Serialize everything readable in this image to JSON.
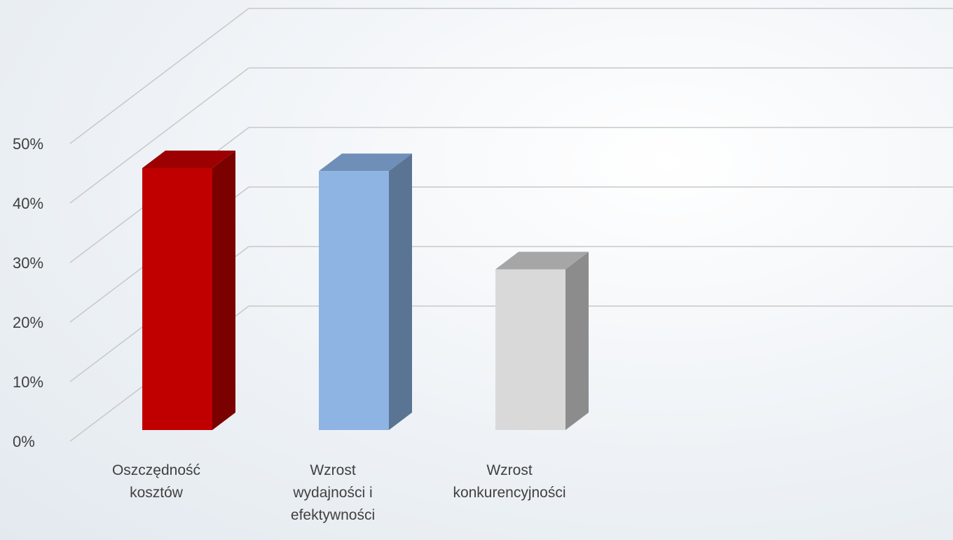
{
  "chart_data": {
    "type": "bar3d",
    "categories": [
      "Oszczędność kosztów",
      "Wzrost wydajności i efektywności",
      "Wzrost konkurencyjności"
    ],
    "values": [
      44,
      43.5,
      27
    ],
    "colors": [
      "#c00000",
      "#8db4e2",
      "#d9d9d9"
    ],
    "side_colors": [
      "#7b0000",
      "#5a7494",
      "#8c8c8c"
    ],
    "top_colors": [
      "#9c0000",
      "#6f8fb8",
      "#a6a6a6"
    ],
    "ylim": [
      0,
      50
    ],
    "yticks": [
      {
        "value": 0,
        "label": "0%"
      },
      {
        "value": 10,
        "label": "10%"
      },
      {
        "value": 20,
        "label": "20%"
      },
      {
        "value": 30,
        "label": "30%"
      },
      {
        "value": 40,
        "label": "40%"
      },
      {
        "value": 50,
        "label": "50%"
      }
    ],
    "grid": true
  }
}
